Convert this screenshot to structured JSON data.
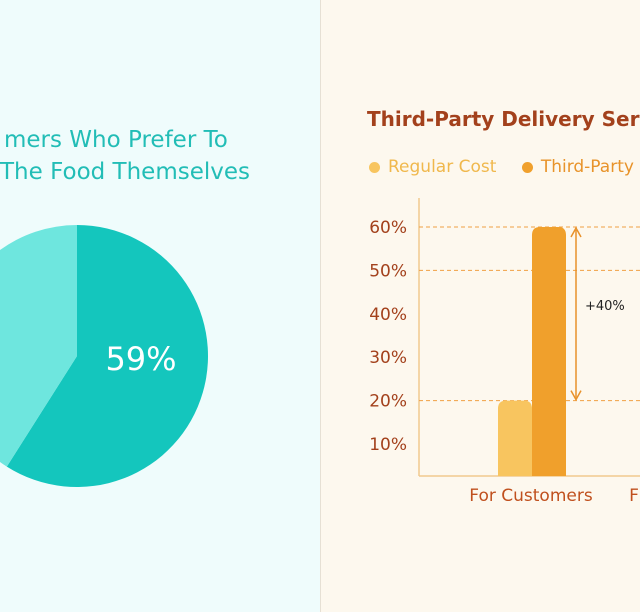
{
  "colors": {
    "teal_dark": "#14c6bd",
    "teal_light": "#6ee6de",
    "teal_text": "#22bdb6",
    "bar_regular": "#f8c55f",
    "bar_third_party": "#f0a02c",
    "title_brown": "#a3411c",
    "dashed_line": "#f0a044"
  },
  "chart_data": [
    {
      "type": "pie",
      "title_lines": [
        "mers Who Prefer To",
        "The Food Themselves"
      ],
      "slices": [
        {
          "label": "59%",
          "value": 59,
          "color": "#14c6bd"
        },
        {
          "label": "",
          "value": 41,
          "color": "#6ee6de"
        }
      ]
    },
    {
      "type": "bar",
      "title": "Third-Party Delivery Servic",
      "categories": [
        "For Customers",
        "F"
      ],
      "series": [
        {
          "name": "Regular Cost",
          "color": "#f8c55f",
          "values": [
            20,
            null
          ]
        },
        {
          "name": "Third-Party D",
          "color": "#f0a02c",
          "values": [
            60,
            null
          ]
        }
      ],
      "y_ticks": [
        "10%",
        "20%",
        "30%",
        "40%",
        "50%",
        "60%"
      ],
      "ylim": [
        0,
        60
      ],
      "annotation": {
        "text": "+40%",
        "from": 20,
        "to": 60
      },
      "reference_lines": [
        20,
        50,
        60
      ],
      "grid": false,
      "legend_position": "top"
    }
  ]
}
